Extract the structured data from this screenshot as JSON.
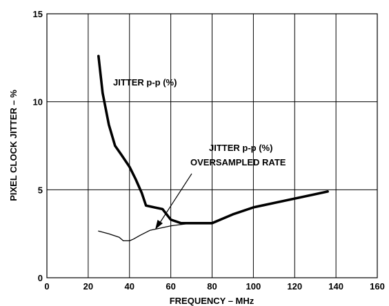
{
  "chart_data": {
    "type": "line",
    "xlabel": "FREQUENCY – MHz",
    "ylabel": "PIXEL CLOCK JITTER – %",
    "xlim": [
      0,
      160
    ],
    "ylim": [
      0,
      15
    ],
    "x_ticks": [
      "0",
      "20",
      "40",
      "60",
      "80",
      "100",
      "120",
      "140",
      "160"
    ],
    "y_ticks": [
      "0",
      "5",
      "10",
      "15"
    ],
    "grid": true,
    "series": [
      {
        "name": "JITTER p-p (%)",
        "x": [
          25,
          27,
          30,
          33,
          36,
          40,
          43,
          46,
          48,
          52,
          56,
          60,
          65,
          70,
          80,
          90,
          100,
          110,
          120,
          130,
          136
        ],
        "y": [
          12.6,
          10.5,
          8.7,
          7.5,
          7.0,
          6.3,
          5.6,
          4.8,
          4.1,
          4.0,
          3.9,
          3.3,
          3.1,
          3.1,
          3.1,
          3.6,
          4.0,
          4.25,
          4.5,
          4.75,
          4.9
        ]
      },
      {
        "name": "JITTER p-p (%) OVERSAMPLED RATE",
        "x": [
          25,
          30,
          35,
          37,
          40,
          42,
          45,
          50,
          60,
          70,
          80
        ],
        "y": [
          2.65,
          2.5,
          2.3,
          2.1,
          2.1,
          2.2,
          2.4,
          2.7,
          2.95,
          3.1,
          3.15
        ]
      }
    ],
    "annotations": [
      {
        "text": "JITTER p-p (%)"
      },
      {
        "lines": [
          "JITTER p-p (%)",
          "OVERSAMPLED RATE"
        ]
      }
    ]
  }
}
